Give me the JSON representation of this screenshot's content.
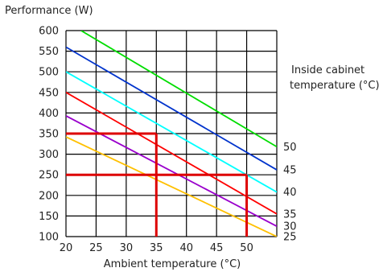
{
  "chart_data": {
    "type": "line",
    "title": "",
    "ylabel": "Performance (W)",
    "xlabel": "Ambient temperature (°C)",
    "legend_title_line1": "Inside cabinet",
    "legend_title_line2": "temperature (°C)",
    "xlim": [
      20,
      55
    ],
    "ylim": [
      100,
      600
    ],
    "x_ticks": [
      "20",
      "25",
      "30",
      "35",
      "40",
      "45",
      "50"
    ],
    "y_ticks": [
      "100",
      "150",
      "200",
      "250",
      "300",
      "350",
      "400",
      "450",
      "500",
      "550",
      "600"
    ],
    "grid": true,
    "series": [
      {
        "name": "25",
        "color": "#ffc000",
        "points": [
          [
            20,
            342
          ],
          [
            55,
            100
          ]
        ]
      },
      {
        "name": "30",
        "color": "#9a00cc",
        "points": [
          [
            20,
            393
          ],
          [
            55,
            125
          ]
        ]
      },
      {
        "name": "35",
        "color": "#ff0000",
        "points": [
          [
            20,
            450
          ],
          [
            55,
            155
          ]
        ]
      },
      {
        "name": "40",
        "color": "#00ffff",
        "points": [
          [
            20,
            500
          ],
          [
            55,
            208
          ]
        ]
      },
      {
        "name": "45",
        "color": "#0033cc",
        "points": [
          [
            20,
            560
          ],
          [
            55,
            262
          ]
        ]
      },
      {
        "name": "50",
        "color": "#00dd00",
        "points": [
          [
            22.5,
            600
          ],
          [
            55,
            318
          ]
        ]
      }
    ],
    "reference_lines": {
      "color": "#dd0000",
      "horizontal": [
        {
          "y": 350,
          "x_start": 20,
          "x_end": 35
        },
        {
          "y": 250,
          "x_start": 20,
          "x_end": 50
        }
      ],
      "vertical": [
        {
          "x": 35,
          "y_start": 100,
          "y_end": 350
        },
        {
          "x": 50,
          "y_start": 100,
          "y_end": 250
        }
      ]
    }
  }
}
